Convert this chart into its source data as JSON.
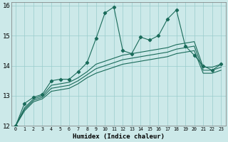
{
  "xlabel": "Humidex (Indice chaleur)",
  "xlim": [
    -0.5,
    23.5
  ],
  "ylim": [
    12,
    16.1
  ],
  "xticks": [
    0,
    1,
    2,
    3,
    4,
    5,
    6,
    7,
    8,
    9,
    10,
    11,
    12,
    13,
    14,
    15,
    16,
    17,
    18,
    19,
    20,
    21,
    22,
    23
  ],
  "yticks": [
    12,
    13,
    14,
    15,
    16
  ],
  "bg_color": "#cce9e9",
  "grid_color": "#99cccc",
  "line_color": "#1a6b5a",
  "line1_x": [
    0,
    1,
    2,
    3,
    4,
    5,
    6,
    7,
    8,
    9,
    10,
    11,
    12,
    13,
    14,
    15,
    16,
    17,
    18,
    19,
    20,
    21,
    22,
    23
  ],
  "line1_y": [
    12.0,
    12.75,
    12.95,
    13.05,
    13.5,
    13.55,
    13.55,
    13.8,
    14.1,
    14.9,
    15.75,
    15.95,
    14.5,
    14.4,
    14.95,
    14.85,
    15.0,
    15.55,
    15.85,
    14.65,
    14.35,
    14.0,
    13.85,
    14.05
  ],
  "line2_x": [
    0,
    1,
    2,
    3,
    4,
    5,
    6,
    7,
    8,
    9,
    10,
    11,
    12,
    13,
    14,
    15,
    16,
    17,
    18,
    19,
    20,
    21,
    22,
    23
  ],
  "line2_y": [
    12.0,
    12.6,
    12.9,
    13.0,
    13.35,
    13.4,
    13.45,
    13.6,
    13.8,
    14.05,
    14.15,
    14.25,
    14.35,
    14.4,
    14.45,
    14.5,
    14.55,
    14.6,
    14.7,
    14.75,
    14.8,
    13.95,
    13.95,
    14.05
  ],
  "line3_x": [
    0,
    1,
    2,
    3,
    4,
    5,
    6,
    7,
    8,
    9,
    10,
    11,
    12,
    13,
    14,
    15,
    16,
    17,
    18,
    19,
    20,
    21,
    22,
    23
  ],
  "line3_y": [
    12.0,
    12.55,
    12.85,
    12.95,
    13.25,
    13.3,
    13.35,
    13.5,
    13.7,
    13.9,
    14.0,
    14.1,
    14.2,
    14.25,
    14.3,
    14.35,
    14.4,
    14.45,
    14.55,
    14.6,
    14.65,
    13.85,
    13.85,
    13.95
  ],
  "line4_x": [
    0,
    1,
    2,
    3,
    4,
    5,
    6,
    7,
    8,
    9,
    10,
    11,
    12,
    13,
    14,
    15,
    16,
    17,
    18,
    19,
    20,
    21,
    22,
    23
  ],
  "line4_y": [
    12.0,
    12.5,
    12.8,
    12.9,
    13.15,
    13.2,
    13.25,
    13.4,
    13.6,
    13.75,
    13.85,
    13.95,
    14.05,
    14.1,
    14.15,
    14.2,
    14.25,
    14.3,
    14.4,
    14.45,
    14.5,
    13.75,
    13.75,
    13.85
  ]
}
